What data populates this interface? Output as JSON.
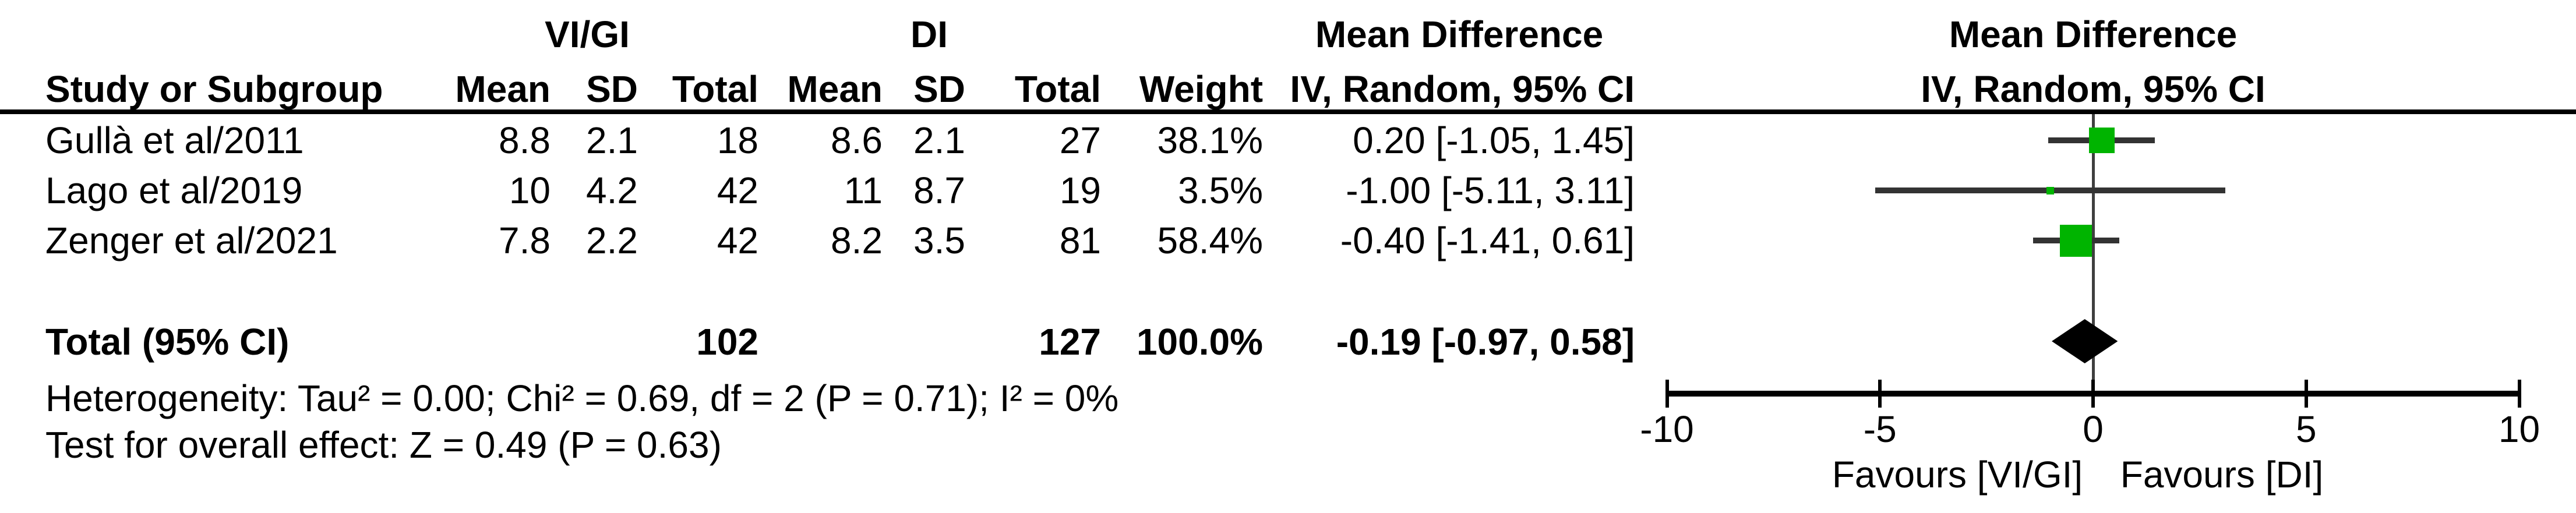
{
  "table": {
    "group1_label": "VI/GI",
    "group2_label": "DI",
    "col_headers": {
      "study": "Study or Subgroup",
      "mean": "Mean",
      "sd": "SD",
      "total": "Total",
      "weight": "Weight",
      "effect_line1": "Mean Difference",
      "effect_line2": "IV, Random, 95% CI"
    },
    "plot_header": {
      "line1": "Mean Difference",
      "line2": "IV, Random, 95% CI"
    },
    "rows": [
      {
        "study": "Gullà et al/2011",
        "mean1": "8.8",
        "sd1": "2.1",
        "total1": "18",
        "mean2": "8.6",
        "sd2": "2.1",
        "total2": "27",
        "weight": "38.1%",
        "effect": "0.20 [-1.05, 1.45]"
      },
      {
        "study": "Lago et al/2019",
        "mean1": "10",
        "sd1": "4.2",
        "total1": "42",
        "mean2": "11",
        "sd2": "8.7",
        "total2": "19",
        "weight": "3.5%",
        "effect": "-1.00 [-5.11, 3.11]"
      },
      {
        "study": "Zenger et al/2021",
        "mean1": "7.8",
        "sd1": "2.2",
        "total1": "42",
        "mean2": "8.2",
        "sd2": "3.5",
        "total2": "81",
        "weight": "58.4%",
        "effect": "-0.40 [-1.41, 0.61]"
      }
    ],
    "total_row": {
      "label": "Total (95% CI)",
      "total1": "102",
      "total2": "127",
      "weight": "100.0%",
      "effect": "-0.19 [-0.97, 0.58]"
    },
    "footer": {
      "heterogeneity": "Heterogeneity: Tau² = 0.00; Chi² = 0.69, df = 2 (P = 0.71); I² = 0%",
      "overall_effect": "Test for overall effect: Z = 0.49 (P = 0.63)"
    }
  },
  "chart_data": {
    "type": "forest",
    "effect_measure": "Mean Difference",
    "model": "IV, Random, 95% CI",
    "x_axis": {
      "min": -10,
      "max": 10,
      "ticks": [
        -10,
        -5,
        0,
        5,
        10
      ],
      "zero_reference": 0
    },
    "studies": [
      {
        "name": "Gullà et al/2011",
        "md": 0.2,
        "ci_low": -1.05,
        "ci_high": 1.45,
        "weight_pct": 38.1
      },
      {
        "name": "Lago et al/2019",
        "md": -1.0,
        "ci_low": -5.11,
        "ci_high": 3.11,
        "weight_pct": 3.5
      },
      {
        "name": "Zenger et al/2021",
        "md": -0.4,
        "ci_low": -1.41,
        "ci_high": 0.61,
        "weight_pct": 58.4
      }
    ],
    "total": {
      "md": -0.19,
      "ci_low": -0.97,
      "ci_high": 0.58,
      "weight_pct": 100.0
    },
    "heterogeneity": {
      "tau2": 0.0,
      "chi2": 0.69,
      "df": 2,
      "p": 0.71,
      "i2_pct": 0
    },
    "overall_test": {
      "z": 0.49,
      "p": 0.63
    },
    "favours_left": "Favours [VI/GI]",
    "favours_right": "Favours [DI]",
    "marker_color": "#00b400",
    "ci_line_color": "#333333",
    "diamond_color": "#000000"
  }
}
